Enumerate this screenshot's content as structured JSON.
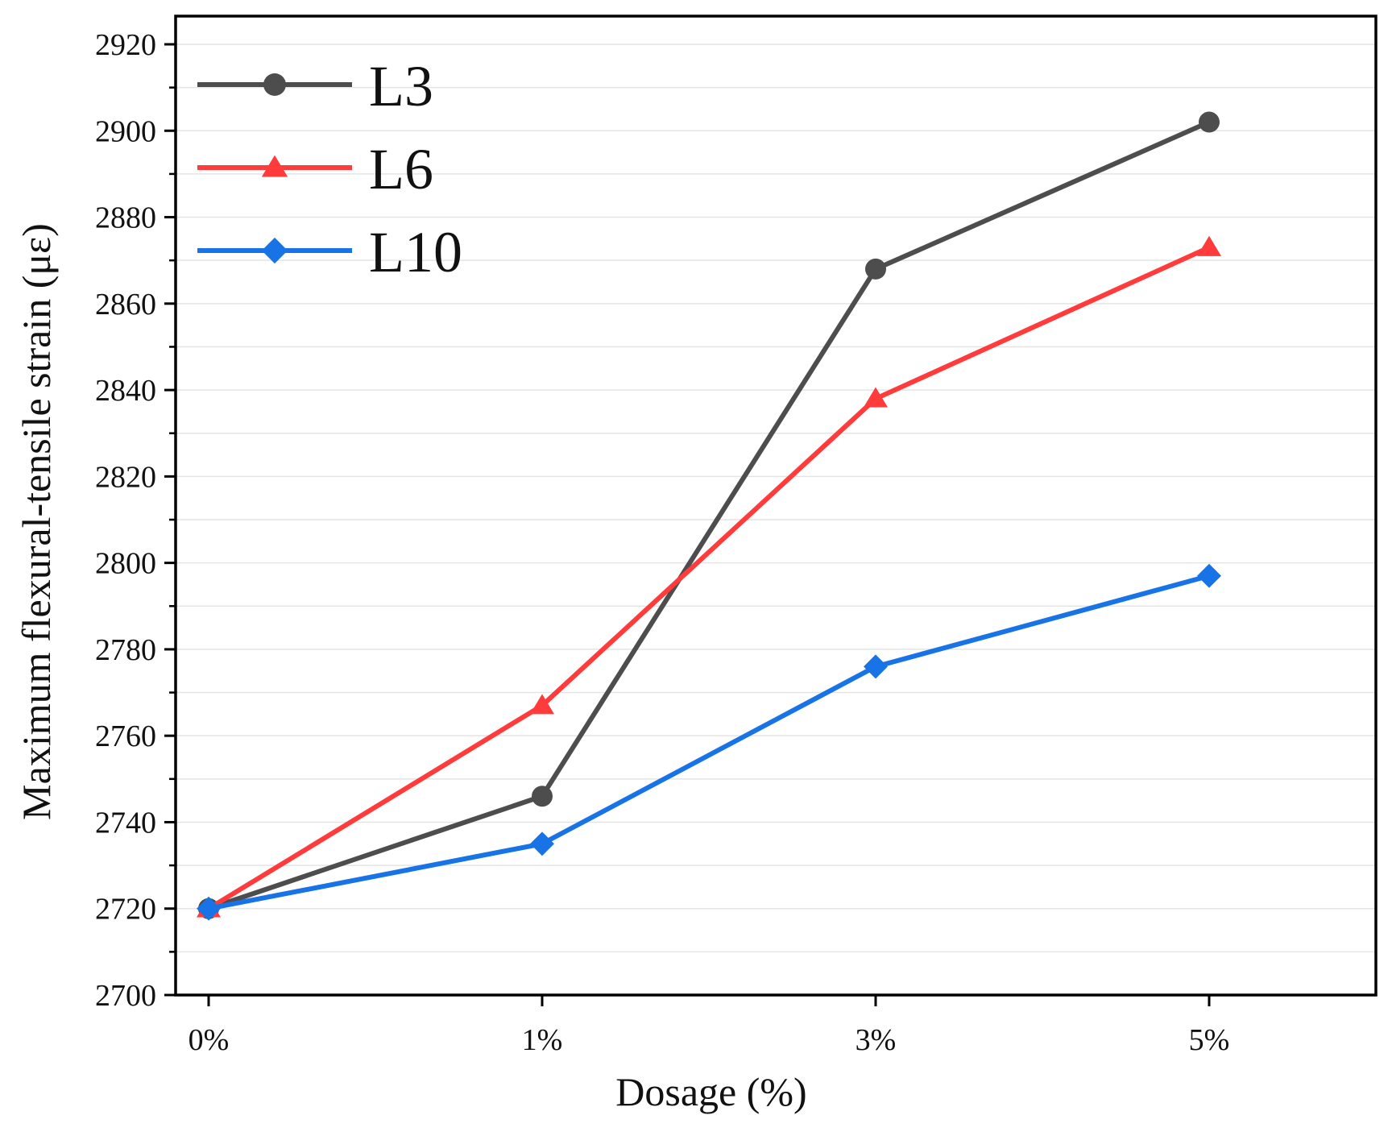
{
  "chart_data": {
    "type": "line",
    "xlabel": "Dosage (%)",
    "ylabel": "Maximum flexural-tensile strain (με)",
    "categories": [
      "0%",
      "1%",
      "3%",
      "5%"
    ],
    "ylim": [
      2700,
      2920
    ],
    "yticks": [
      2700,
      2720,
      2740,
      2760,
      2780,
      2800,
      2820,
      2840,
      2860,
      2880,
      2900,
      2920
    ],
    "grid": true,
    "legend": "top-left",
    "series": [
      {
        "name": "L3",
        "color": "#4d4d4d",
        "marker": "circle",
        "values": [
          2720,
          2746,
          2868,
          2902
        ]
      },
      {
        "name": "L6",
        "color": "#ff3b3b",
        "marker": "triangle",
        "values": [
          2720,
          2767,
          2838,
          2873
        ]
      },
      {
        "name": "L10",
        "color": "#1773e6",
        "marker": "diamond",
        "values": [
          2720,
          2735,
          2776,
          2797
        ]
      }
    ]
  }
}
